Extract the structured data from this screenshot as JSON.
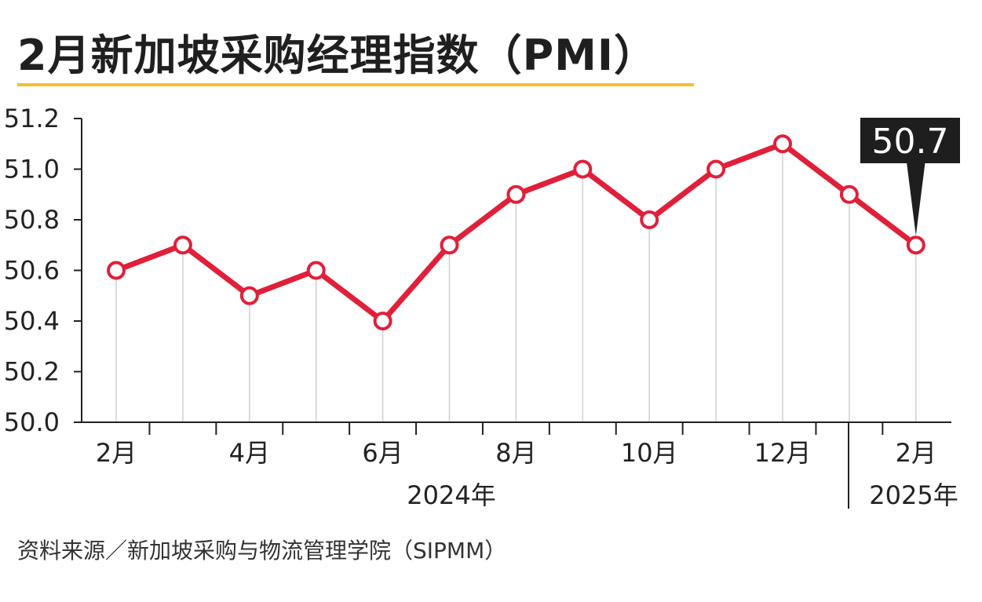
{
  "title": "2月新加坡采购经理指数（PMI）",
  "source": "资料来源／新加坡采购与物流管理学院（SIPMM）",
  "callout": "50.7",
  "colors": {
    "line": "#e0203a",
    "accent_rule": "#f2c12e",
    "callout_bg": "#1e1e1e",
    "grid": "#cfcfcf",
    "axis": "#222222"
  },
  "chart_data": {
    "type": "line",
    "title": "2月新加坡采购经理指数（PMI）",
    "xlabel": "",
    "ylabel": "",
    "ylim": [
      50.0,
      51.2
    ],
    "yticks": [
      "50.0",
      "50.2",
      "50.4",
      "50.6",
      "50.8",
      "51.0",
      "51.2"
    ],
    "grid": "vertical",
    "categories": [
      "2024-02",
      "2024-03",
      "2024-04",
      "2024-05",
      "2024-06",
      "2024-07",
      "2024-08",
      "2024-09",
      "2024-10",
      "2024-11",
      "2024-12",
      "2025-01",
      "2025-02"
    ],
    "x_tick_labels": [
      "2月",
      "",
      "4月",
      "",
      "6月",
      "",
      "8月",
      "",
      "10月",
      "",
      "12月",
      "",
      "2月"
    ],
    "year_labels": [
      "2024年",
      "2025年"
    ],
    "series": [
      {
        "values": [
          50.6,
          50.7,
          50.5,
          50.6,
          50.4,
          50.7,
          50.9,
          51.0,
          50.8,
          51.0,
          51.1,
          50.9,
          50.7
        ]
      }
    ]
  }
}
